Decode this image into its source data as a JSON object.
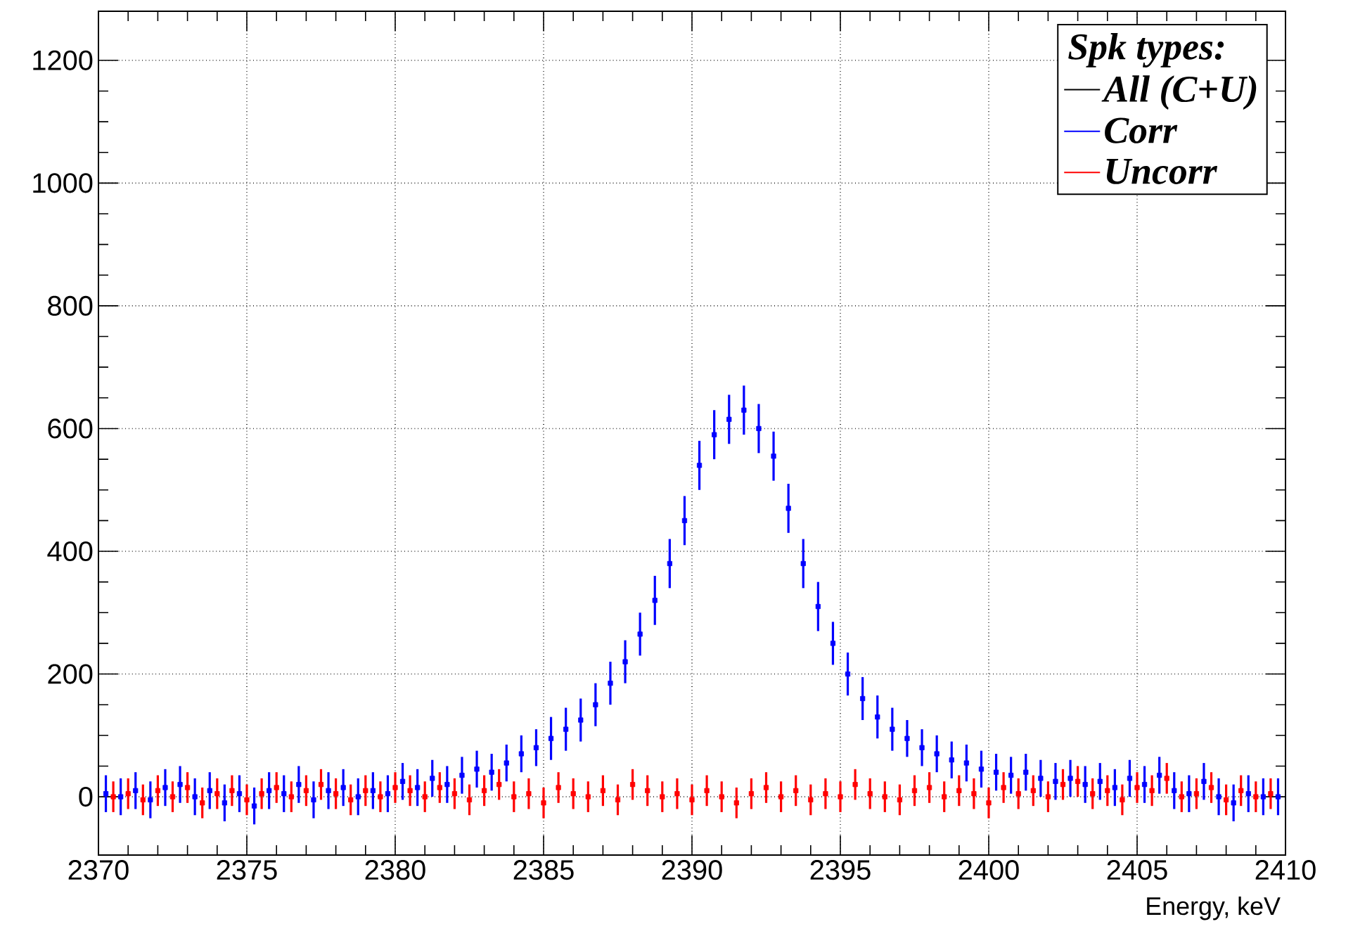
{
  "chart_data": {
    "type": "scatter",
    "xlabel": "Energy, keV",
    "legend_title": "Spk types:",
    "legend": "top right",
    "grid": true,
    "marker": "square",
    "xlim": [
      2370,
      2410
    ],
    "xticks": [
      2370,
      2375,
      2380,
      2385,
      2390,
      2395,
      2400,
      2405,
      2410
    ],
    "ylim": [
      -95,
      1280
    ],
    "yticks": [
      0,
      200,
      400,
      600,
      800,
      1000,
      1200
    ],
    "x": [
      2370.25,
      2370.75,
      2371.25,
      2371.75,
      2372.25,
      2372.75,
      2373.25,
      2373.75,
      2374.25,
      2374.75,
      2375.25,
      2375.75,
      2376.25,
      2376.75,
      2377.25,
      2377.75,
      2378.25,
      2378.75,
      2379.25,
      2379.75,
      2380.25,
      2380.75,
      2381.25,
      2381.75,
      2382.25,
      2382.75,
      2383.25,
      2383.75,
      2384.25,
      2384.75,
      2385.25,
      2385.75,
      2386.25,
      2386.75,
      2387.25,
      2387.75,
      2388.25,
      2388.75,
      2389.25,
      2389.75,
      2390.25,
      2390.75,
      2391.25,
      2391.75,
      2392.25,
      2392.75,
      2393.25,
      2393.75,
      2394.25,
      2394.75,
      2395.25,
      2395.75,
      2396.25,
      2396.75,
      2397.25,
      2397.75,
      2398.25,
      2398.75,
      2399.25,
      2399.75,
      2400.25,
      2400.75,
      2401.25,
      2401.75,
      2402.25,
      2402.75,
      2403.25,
      2403.75,
      2404.25,
      2404.75,
      2405.25,
      2405.75,
      2406.25,
      2406.75,
      2407.25,
      2407.75,
      2408.25,
      2408.75,
      2409.25,
      2409.75
    ],
    "series": [
      {
        "name": "All (C+U)",
        "color": "#000000",
        "values": [
          null,
          null,
          null,
          null,
          null,
          null,
          null,
          null,
          null,
          null,
          null,
          null,
          null,
          null,
          null,
          null,
          null,
          null,
          null,
          null,
          null,
          null,
          null,
          null,
          null,
          null,
          null,
          null,
          null,
          null,
          null,
          null,
          null,
          null,
          null,
          null,
          null,
          null,
          null,
          null,
          null,
          null,
          null,
          null,
          null,
          null,
          null,
          null,
          null,
          null,
          null,
          null,
          null,
          null,
          null,
          null,
          null,
          null,
          null,
          null,
          null,
          null,
          null,
          null,
          null,
          null,
          null,
          null,
          null,
          null,
          null,
          null,
          null,
          null,
          null,
          null,
          null,
          null,
          null,
          null
        ]
      },
      {
        "name": "Corr",
        "color": "#0000ff",
        "values": [
          5,
          0,
          10,
          -5,
          15,
          20,
          0,
          10,
          -10,
          5,
          -15,
          10,
          5,
          20,
          -5,
          10,
          15,
          0,
          10,
          5,
          25,
          15,
          30,
          20,
          35,
          45,
          40,
          55,
          70,
          80,
          95,
          110,
          125,
          150,
          185,
          220,
          265,
          320,
          380,
          450,
          540,
          590,
          615,
          630,
          600,
          555,
          470,
          380,
          310,
          250,
          200,
          160,
          130,
          110,
          95,
          80,
          70,
          60,
          55,
          45,
          40,
          35,
          40,
          30,
          25,
          30,
          20,
          25,
          15,
          30,
          20,
          35,
          10,
          5,
          25,
          0,
          -10,
          5,
          0,
          0
        ],
        "errors": [
          30,
          30,
          30,
          30,
          30,
          30,
          30,
          30,
          30,
          30,
          30,
          30,
          30,
          30,
          30,
          30,
          30,
          30,
          30,
          30,
          30,
          30,
          30,
          30,
          30,
          30,
          30,
          30,
          30,
          30,
          35,
          35,
          35,
          35,
          35,
          35,
          35,
          40,
          40,
          40,
          40,
          40,
          40,
          40,
          40,
          40,
          40,
          40,
          40,
          35,
          35,
          35,
          35,
          35,
          30,
          30,
          30,
          30,
          30,
          30,
          30,
          30,
          30,
          30,
          30,
          30,
          30,
          30,
          30,
          30,
          30,
          30,
          30,
          30,
          30,
          30,
          30,
          30,
          30,
          30
        ]
      },
      {
        "name": "Uncorr",
        "color": "#ff0000",
        "x": [
          2370.5,
          2371,
          2371.5,
          2372,
          2372.5,
          2373,
          2373.5,
          2374,
          2374.5,
          2375,
          2375.5,
          2376,
          2376.5,
          2377,
          2377.5,
          2378,
          2378.5,
          2379,
          2379.5,
          2380,
          2380.5,
          2381,
          2381.5,
          2382,
          2382.5,
          2383,
          2383.5,
          2384,
          2384.5,
          2385,
          2385.5,
          2386,
          2386.5,
          2387,
          2387.5,
          2388,
          2388.5,
          2389,
          2389.5,
          2390,
          2390.5,
          2391,
          2391.5,
          2392,
          2392.5,
          2393,
          2393.5,
          2394,
          2394.5,
          2395,
          2395.5,
          2396,
          2396.5,
          2397,
          2397.5,
          2398,
          2398.5,
          2399,
          2399.5,
          2400,
          2400.5,
          2401,
          2401.5,
          2402,
          2402.5,
          2403,
          2403.5,
          2404,
          2404.5,
          2405,
          2405.5,
          2406,
          2406.5,
          2407,
          2407.5,
          2408,
          2408.5,
          2409,
          2409.5
        ],
        "values": [
          0,
          5,
          -5,
          10,
          0,
          15,
          -10,
          5,
          10,
          -5,
          5,
          15,
          0,
          10,
          20,
          5,
          -5,
          10,
          0,
          15,
          10,
          0,
          15,
          5,
          -5,
          10,
          20,
          0,
          5,
          -10,
          15,
          5,
          0,
          10,
          -5,
          20,
          10,
          0,
          5,
          -5,
          10,
          0,
          -10,
          5,
          15,
          0,
          10,
          -5,
          5,
          0,
          20,
          5,
          0,
          -5,
          10,
          15,
          0,
          10,
          5,
          -10,
          15,
          5,
          10,
          0,
          20,
          25,
          5,
          10,
          -5,
          15,
          10,
          30,
          0,
          5,
          15,
          -5,
          10,
          0,
          5
        ],
        "errors": [
          25,
          25,
          25,
          25,
          25,
          25,
          25,
          25,
          25,
          25,
          25,
          25,
          25,
          25,
          25,
          25,
          25,
          25,
          25,
          25,
          25,
          25,
          25,
          25,
          25,
          25,
          25,
          25,
          25,
          25,
          25,
          25,
          25,
          25,
          25,
          25,
          25,
          25,
          25,
          25,
          25,
          25,
          25,
          25,
          25,
          25,
          25,
          25,
          25,
          25,
          25,
          25,
          25,
          25,
          25,
          25,
          25,
          25,
          25,
          25,
          25,
          25,
          25,
          25,
          25,
          25,
          25,
          25,
          25,
          25,
          25,
          25,
          25,
          25,
          25,
          25,
          25,
          25,
          25
        ]
      }
    ]
  }
}
